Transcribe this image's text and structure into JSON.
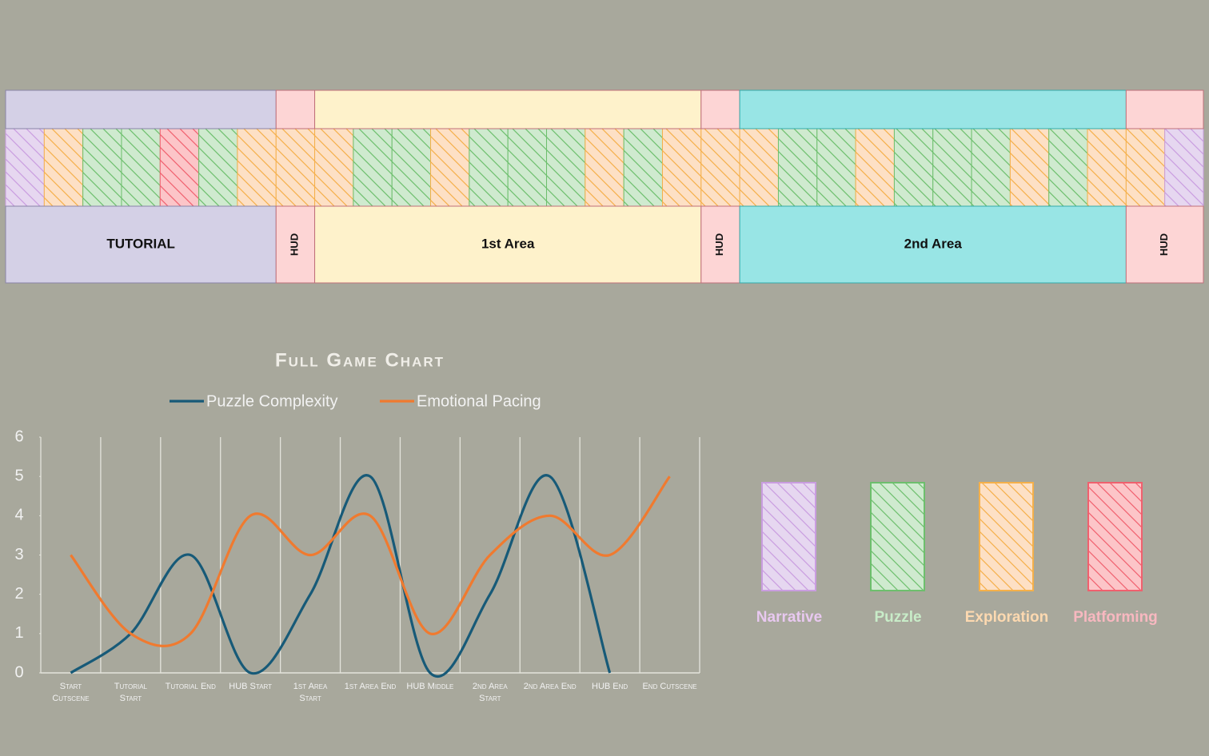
{
  "level_strip": {
    "sections": [
      {
        "label": "TUTORIAL",
        "color": "#d4d0e6"
      },
      {
        "label": "HUD",
        "color": "#fdd5d5"
      },
      {
        "label": "1st Area",
        "color": "#fef2cb"
      },
      {
        "label": "HUD",
        "color": "#fdd5d5"
      },
      {
        "label": "2nd Area",
        "color": "#98e5e5"
      },
      {
        "label": "HUD",
        "color": "#fdd5d5"
      }
    ],
    "tiles": [
      "Narrative",
      "Exploration",
      "Puzzle",
      "Puzzle",
      "Platforming",
      "Puzzle",
      "Exploration",
      "Exploration",
      "Exploration",
      "Puzzle",
      "Puzzle",
      "Exploration",
      "Puzzle",
      "Puzzle",
      "Puzzle",
      "Exploration",
      "Puzzle",
      "Exploration",
      "Exploration",
      "Exploration",
      "Puzzle",
      "Puzzle",
      "Exploration",
      "Puzzle",
      "Puzzle",
      "Puzzle",
      "Exploration",
      "Puzzle",
      "Exploration",
      "Exploration",
      "Narrative"
    ]
  },
  "legend": [
    {
      "label": "Narrative",
      "fill": "#e6d7f0",
      "stroke": "#c99de0",
      "text_color": "#e8c8f0"
    },
    {
      "label": "Puzzle",
      "fill": "#cfeacf",
      "stroke": "#6dbf6d",
      "text_color": "#c8ecc8"
    },
    {
      "label": "Exploration",
      "fill": "#fde0c5",
      "stroke": "#f5b04a",
      "text_color": "#fdd9b0"
    },
    {
      "label": "Platforming",
      "fill": "#fcc5c8",
      "stroke": "#f0606e",
      "text_color": "#f8b8c0"
    }
  ],
  "chart_data": {
    "type": "line",
    "title": "Full Game Chart",
    "categories": [
      "Start Cutscene",
      "Tutorial Start",
      "Tutorial End",
      "HUB Start",
      "1st Area Start",
      "1st Area End",
      "HUB Middle",
      "2nd Area Start",
      "2nd Area End",
      "HUB End",
      "End Cutscene"
    ],
    "series": [
      {
        "name": "Puzzle Complexity",
        "color": "#175a78",
        "values": [
          0,
          1,
          3,
          0,
          2,
          5,
          0,
          2,
          5,
          0,
          null
        ]
      },
      {
        "name": "Emotional Pacing",
        "color": "#f07a2f",
        "values": [
          3,
          1,
          1,
          4,
          3,
          4,
          1,
          3,
          4,
          3,
          5
        ]
      }
    ],
    "ylim": [
      0,
      6
    ],
    "yticks": [
      0,
      1,
      2,
      3,
      4,
      5,
      6
    ],
    "smooth": true
  }
}
